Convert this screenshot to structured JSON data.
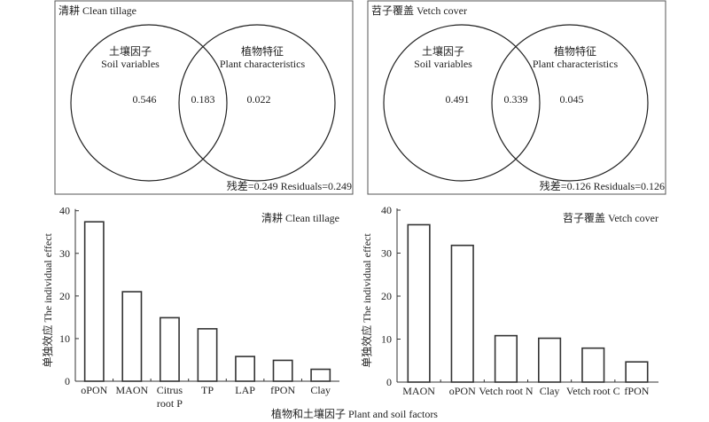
{
  "venn": [
    {
      "title": "清耕 Clean tillage",
      "left_label_cn": "土壤因子",
      "left_label_en": "Soil variables",
      "right_label_cn": "植物特征",
      "right_label_en": "Plant characteristics",
      "left_only": "0.546",
      "overlap": "0.183",
      "right_only": "0.022",
      "residuals": "残差=0.249 Residuals=0.249"
    },
    {
      "title": "苕子覆盖 Vetch cover",
      "left_label_cn": "土壤因子",
      "left_label_en": "Soil variables",
      "right_label_cn": "植物特征",
      "right_label_en": "Plant characteristics",
      "left_only": "0.491",
      "overlap": "0.339",
      "right_only": "0.045",
      "residuals": "残差=0.126 Residuals=0.126"
    }
  ],
  "chart_data": [
    {
      "type": "bar",
      "title": "清耕 Clean tillage",
      "categories": [
        "oPON",
        "MAON",
        "Citrus root P",
        "TP",
        "LAP",
        "fPON",
        "Clay"
      ],
      "category_lines": [
        [
          "oPON"
        ],
        [
          "MAON"
        ],
        [
          "Citrus",
          "root P"
        ],
        [
          "TP"
        ],
        [
          "LAP"
        ],
        [
          "fPON"
        ],
        [
          "Clay"
        ]
      ],
      "values": [
        37.4,
        21.0,
        14.9,
        12.3,
        5.8,
        4.9,
        2.8
      ],
      "ylabel": "单独效应 The individual effect",
      "ylim": [
        0,
        40
      ],
      "yticks": [
        "0",
        "10",
        "20",
        "30",
        "40"
      ],
      "grid": false
    },
    {
      "type": "bar",
      "title": "苕子覆盖 Vetch cover",
      "categories": [
        "MAON",
        "oPON",
        "Vetch root N",
        "Clay",
        "Vetch root C",
        "fPON"
      ],
      "category_lines": [
        [
          "MAON"
        ],
        [
          "oPON"
        ],
        [
          "Vetch root N"
        ],
        [
          "Clay"
        ],
        [
          "Vetch root C"
        ],
        [
          "fPON"
        ]
      ],
      "values": [
        36.6,
        31.8,
        10.8,
        10.2,
        7.9,
        4.7
      ],
      "ylabel": "单独效应 The individual effect",
      "ylim": [
        0,
        40
      ],
      "yticks": [
        "0",
        "10",
        "20",
        "30",
        "40"
      ],
      "grid": false
    }
  ],
  "xlabel": "植物和土壤因子 Plant and soil factors"
}
